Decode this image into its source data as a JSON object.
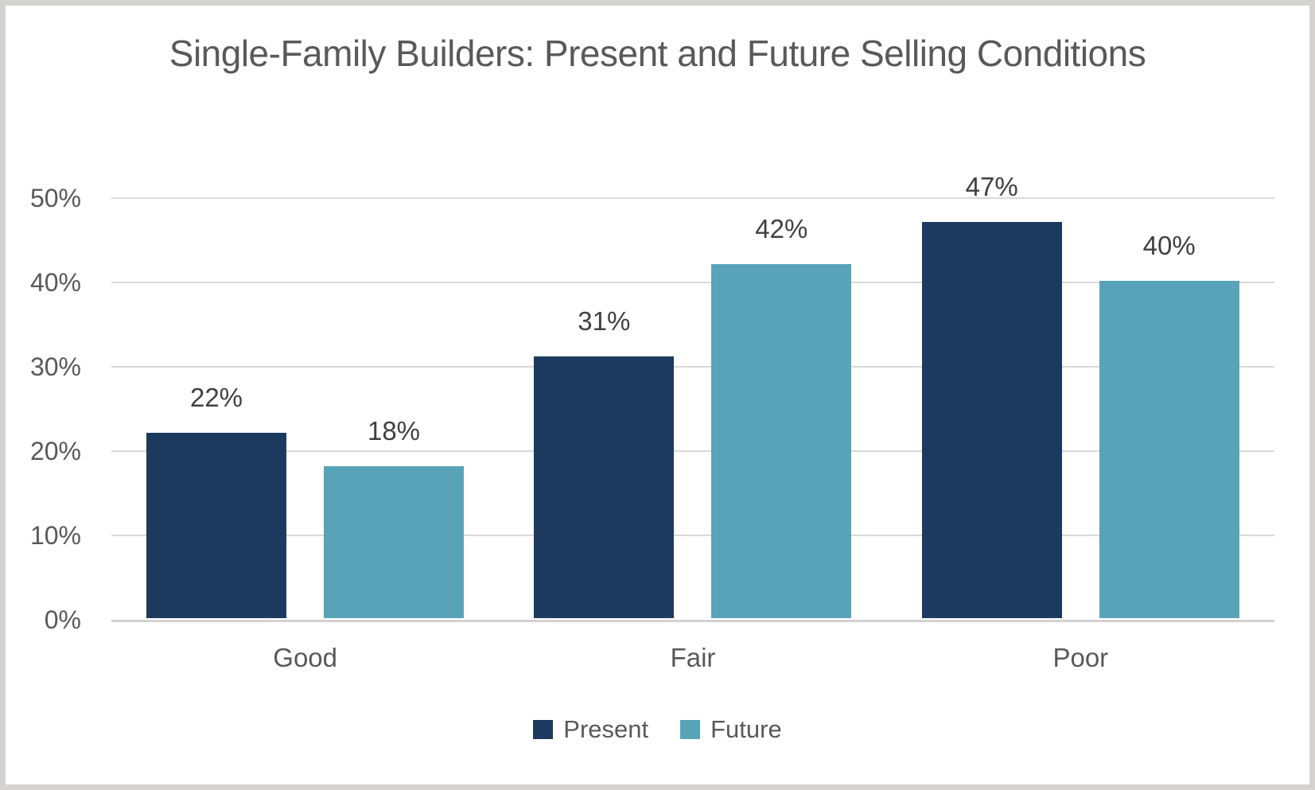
{
  "frame": {
    "background_color": "#ffffff",
    "border_color": "#d5d2d2"
  },
  "chart_data": {
    "type": "bar",
    "title": "Single-Family Builders: Present and Future Selling Conditions",
    "categories": [
      "Good",
      "Fair",
      "Poor"
    ],
    "series": [
      {
        "name": "Present",
        "color": "#1c3a5e",
        "values": [
          22,
          31,
          47
        ],
        "data_labels": [
          "22%",
          "31%",
          "47%"
        ]
      },
      {
        "name": "Future",
        "color": "#59a3b9",
        "values": [
          18,
          42,
          40
        ],
        "data_labels": [
          "18%",
          "42%",
          "40%"
        ]
      }
    ],
    "xlabel": "",
    "ylabel": "",
    "ylim": [
      0,
      50
    ],
    "y_ticks": [
      {
        "label": "50%",
        "value": 50
      },
      {
        "label": "40%",
        "value": 40
      },
      {
        "label": "30%",
        "value": 30
      },
      {
        "label": "20%",
        "value": 20
      },
      {
        "label": "10%",
        "value": 10
      },
      {
        "label": "0%",
        "value": 0
      }
    ],
    "grid": "horizontal",
    "legend_position": "bottom",
    "colors": {
      "title_text": "#595959",
      "axis_tick_text": "#595959",
      "category_text": "#595959",
      "data_label_text": "#404040",
      "legend_text": "#595959",
      "gridline": "#d9d9d9",
      "axis_line": "#d2d0d0"
    }
  }
}
